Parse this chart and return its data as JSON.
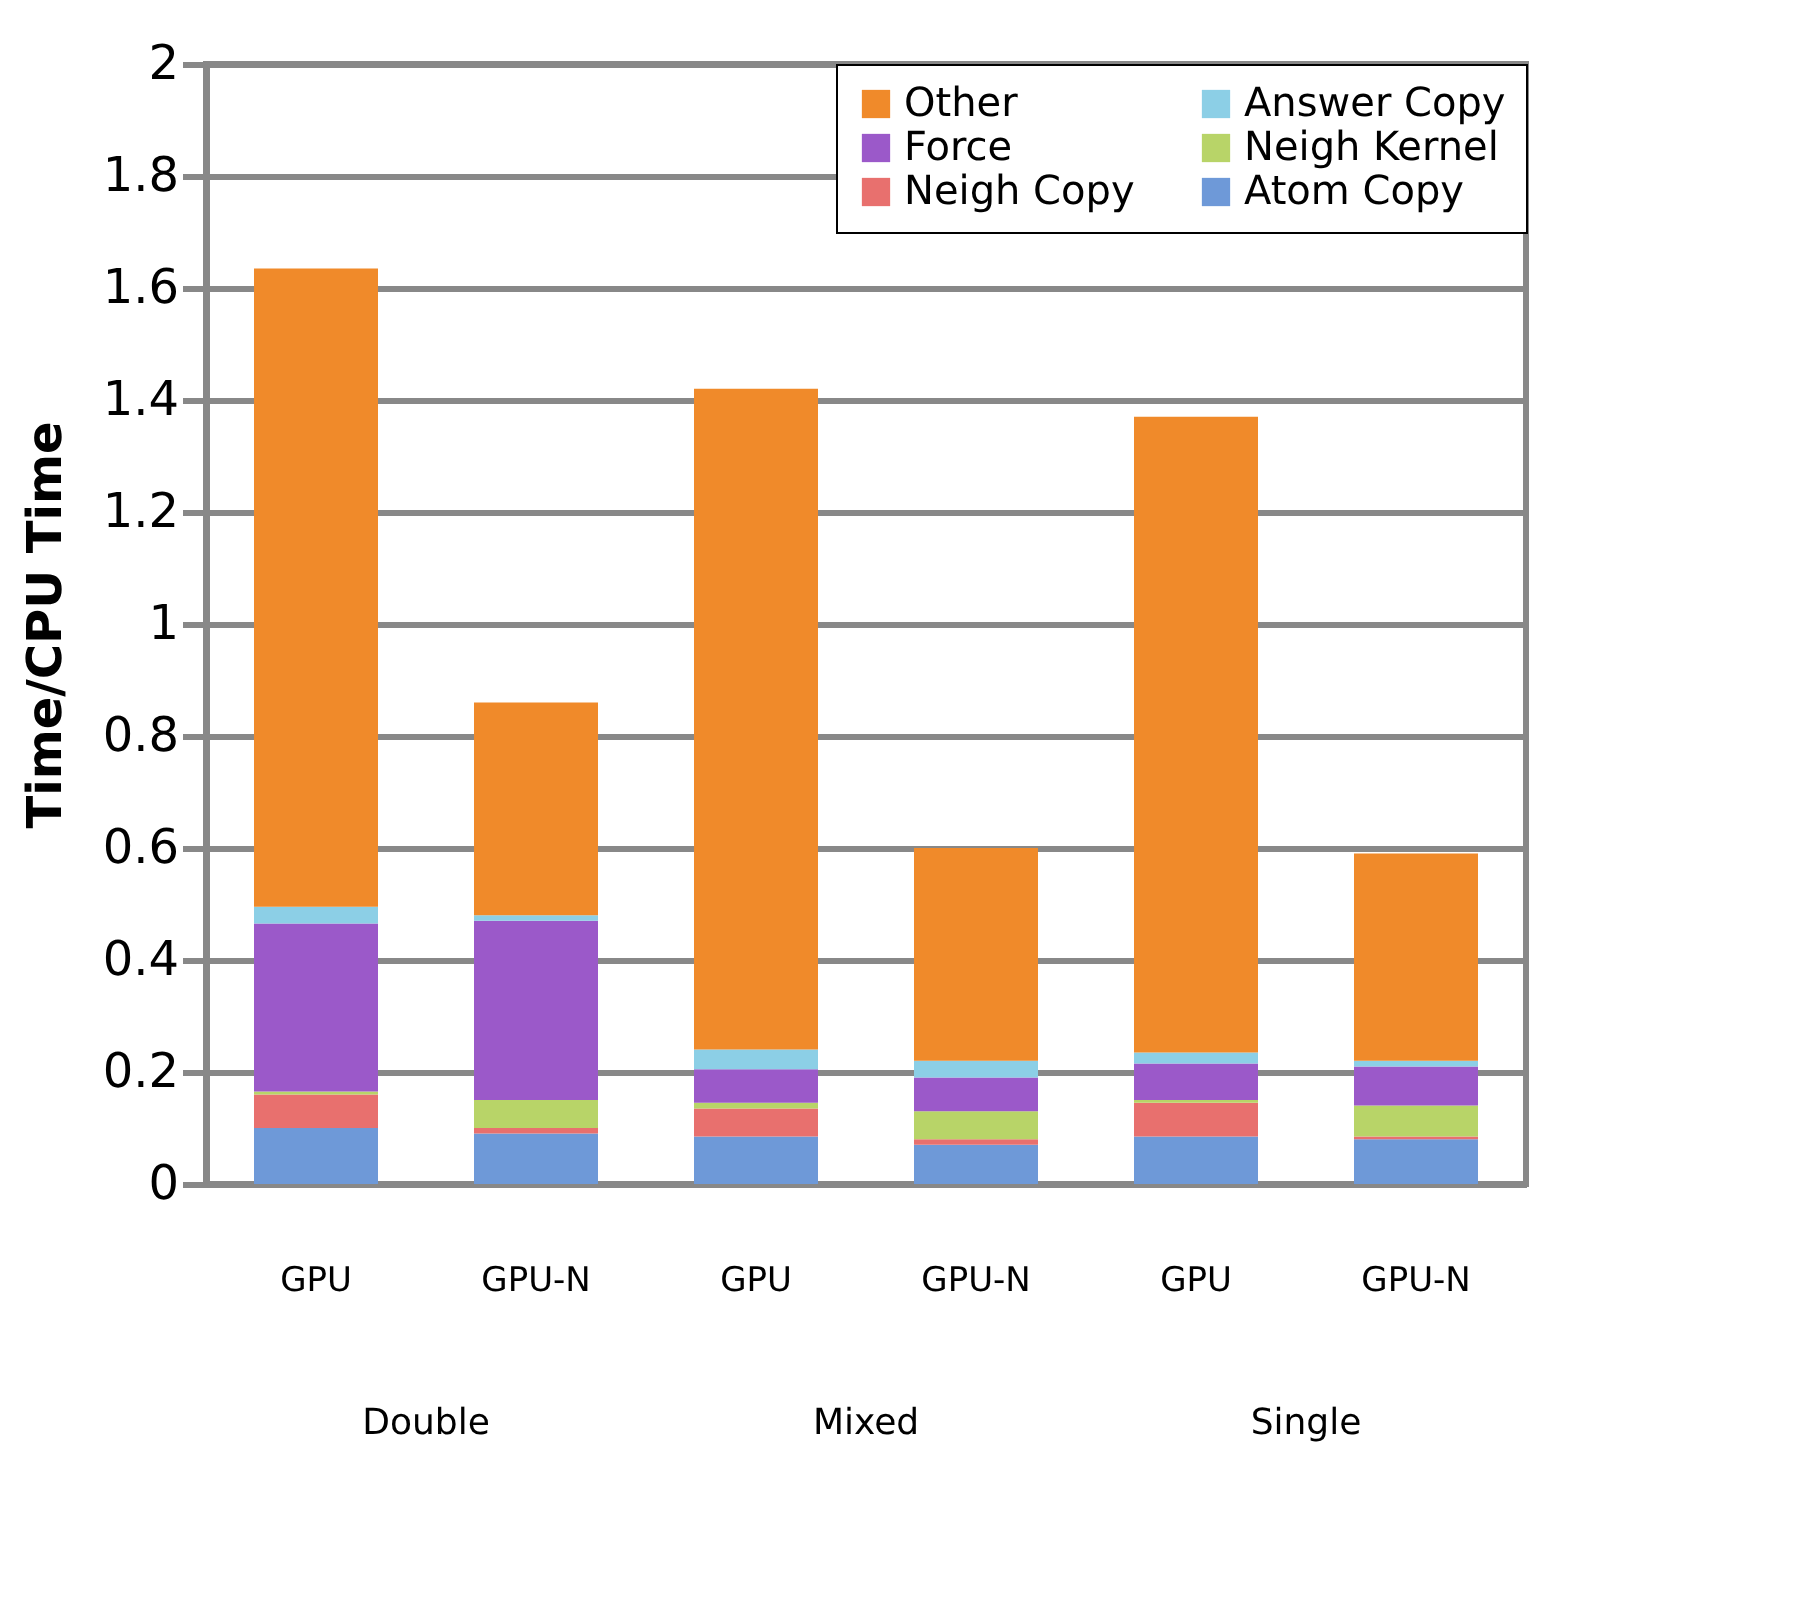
{
  "chart_data": {
    "type": "bar",
    "stacked": true,
    "ylabel": "Time/CPU Time",
    "categories": [
      "GPU",
      "GPU-N",
      "GPU",
      "GPU-N",
      "GPU",
      "GPU-N"
    ],
    "annotations": [
      "Double",
      "Mixed",
      "Single"
    ],
    "series": [
      {
        "name": "Atom Copy",
        "color": "#6e99d8",
        "values": [
          0.1,
          0.09,
          0.085,
          0.07,
          0.085,
          0.08
        ]
      },
      {
        "name": "Neigh Copy",
        "color": "#e8706e",
        "values": [
          0.06,
          0.01,
          0.05,
          0.01,
          0.06,
          0.005
        ]
      },
      {
        "name": "Neigh Kernel",
        "color": "#b8d468",
        "values": [
          0.005,
          0.05,
          0.01,
          0.05,
          0.005,
          0.055
        ]
      },
      {
        "name": "Force",
        "color": "#9b59c9",
        "values": [
          0.3,
          0.32,
          0.06,
          0.06,
          0.065,
          0.07
        ]
      },
      {
        "name": "Answer Copy",
        "color": "#8ccfe6",
        "values": [
          0.03,
          0.01,
          0.035,
          0.03,
          0.02,
          0.01
        ]
      },
      {
        "name": "Other",
        "color": "#f08a2a",
        "values": [
          1.14,
          0.38,
          1.18,
          0.38,
          1.135,
          0.37
        ]
      }
    ],
    "ylim": [
      0,
      2
    ],
    "yticks": [
      0,
      0.2,
      0.4,
      0.6,
      0.8,
      1,
      1.2,
      1.4,
      1.6,
      1.8,
      2
    ],
    "grid": "y",
    "legend": "top right"
  }
}
